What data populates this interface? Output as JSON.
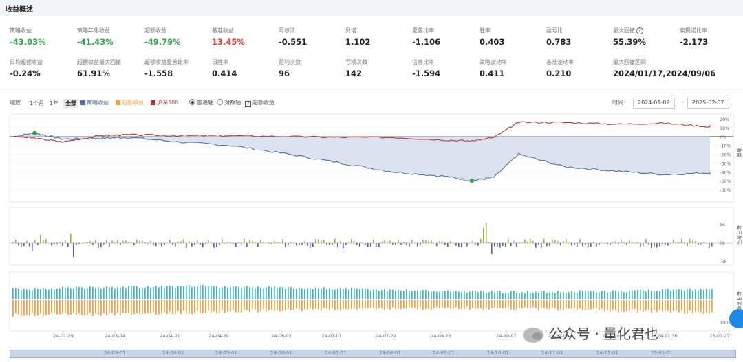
{
  "header": {
    "title": "收益概述"
  },
  "metrics": [
    {
      "label": "策略收益",
      "value": "-43.03%",
      "tone": "green"
    },
    {
      "label": "策略年化收益",
      "value": "-41.43%",
      "tone": "green"
    },
    {
      "label": "超额收益",
      "value": "-49.79%",
      "tone": "green"
    },
    {
      "label": "基准收益",
      "value": "13.45%",
      "tone": "red"
    },
    {
      "label": "阿尔法",
      "value": "-0.551",
      "tone": ""
    },
    {
      "label": "贝塔",
      "value": "1.102",
      "tone": ""
    },
    {
      "label": "夏普比率",
      "value": "-1.106",
      "tone": ""
    },
    {
      "label": "胜率",
      "value": "0.403",
      "tone": ""
    },
    {
      "label": "盈亏比",
      "value": "0.783",
      "tone": ""
    },
    {
      "label": "最大回撤",
      "value": "55.39%",
      "tone": "",
      "help": "?"
    },
    {
      "label": "索提诺比率",
      "value": "-2.173",
      "tone": ""
    },
    {
      "label": "日均超额收益",
      "value": "-0.24%",
      "tone": ""
    },
    {
      "label": "超额收益最大回撤",
      "value": "61.91%",
      "tone": ""
    },
    {
      "label": "超额收益夏普比率",
      "value": "-1.558",
      "tone": ""
    },
    {
      "label": "日胜率",
      "value": "0.414",
      "tone": ""
    },
    {
      "label": "盈利次数",
      "value": "96",
      "tone": ""
    },
    {
      "label": "亏损次数",
      "value": "142",
      "tone": ""
    },
    {
      "label": "信息比率",
      "value": "-1.594",
      "tone": ""
    },
    {
      "label": "策略波动率",
      "value": "0.411",
      "tone": ""
    },
    {
      "label": "基准波动率",
      "value": "0.210",
      "tone": ""
    },
    {
      "label": "最大回撤区间",
      "value": "2024/01/17,2024/09/06",
      "tone": ""
    }
  ],
  "toolbar": {
    "zoom_label": "缩放:",
    "zoom_1m": "1个月",
    "zoom_1y": "1年",
    "zoom_all": "全部",
    "legend_strategy": "策略收益",
    "legend_excess": "超额收益",
    "legend_benchmark": "沪深300",
    "axis_normal": "普通轴",
    "axis_log": "对数轴",
    "excess_check": "超额收益",
    "time_label": "时间:",
    "date_from": "2024-01-02",
    "date_sep": "–",
    "date_to": "2025-02-07"
  },
  "colors": {
    "strategy": "#4a6fa5",
    "excess": "#f0a040",
    "benchmark": "#b03a3a",
    "bar_pos": "#9bb04a",
    "bar_neg": "#5a5fa8",
    "buy": "#3bb5c8",
    "sell": "#f0a040"
  },
  "axes": {
    "right_label_top": "收益",
    "right_label_mid": "每日盈亏",
    "right_label_bottom": "每日买卖",
    "pct_ticks": [
      "20%",
      "10%",
      "0%",
      "-10%",
      "-20%",
      "-30%",
      "-40%",
      "-50%",
      "-60%"
    ],
    "mid_ticks": [
      "5k",
      "0k",
      "-5k"
    ],
    "bottom_ticks": [
      "100k"
    ],
    "x_ticks": [
      "24-01-29",
      "24-03-04",
      "24-04-01",
      "24-04-29",
      "24-06-03",
      "24-07-01",
      "24-07-29",
      "24-08-26",
      "24-10-07",
      "24-11-04",
      "24-12-02",
      "24-12-30",
      "25-01-27"
    ],
    "nav_ticks": [
      "24-03-01",
      "24-04-01",
      "24-05-01",
      "24-06-01",
      "24-07-01",
      "24-08-01",
      "24-09-01",
      "24-10-01",
      "24-11-01",
      "24-12-01",
      "25-01-01"
    ]
  },
  "watermark": "公众号 · 量化君也",
  "chart_data": [
    {
      "type": "line",
      "ylabel": "收益",
      "ylim": [
        -60,
        20
      ],
      "x": [
        "24-01-02",
        "24-01-17",
        "24-01-29",
        "24-02-19",
        "24-03-04",
        "24-04-01",
        "24-04-29",
        "24-06-03",
        "24-07-01",
        "24-07-29",
        "24-08-26",
        "24-09-06",
        "24-09-24",
        "24-10-08",
        "24-11-04",
        "24-12-02",
        "24-12-30",
        "25-01-27",
        "25-02-07"
      ],
      "series": [
        {
          "name": "策略收益",
          "values": [
            0,
            4,
            -3,
            -2,
            -1,
            -6,
            -10,
            -20,
            -30,
            -40,
            -45,
            -50,
            -46,
            -20,
            -34,
            -39,
            -43,
            -41,
            -43
          ]
        },
        {
          "name": "沪深300",
          "values": [
            0,
            -2,
            -6,
            1,
            2,
            1,
            1,
            0,
            -1,
            -1,
            -4,
            -5,
            -1,
            16,
            16,
            14,
            15,
            11,
            13
          ]
        }
      ]
    }
  ]
}
